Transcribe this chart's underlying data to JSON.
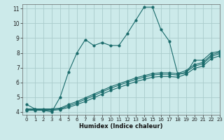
{
  "xlabel": "Humidex (Indice chaleur)",
  "ylabel": "",
  "bg_color": "#cceaea",
  "line_color": "#1a6b6b",
  "grid_color": "#aacccc",
  "xlim": [
    -0.5,
    23
  ],
  "ylim": [
    3.8,
    11.3
  ],
  "yticks": [
    4,
    5,
    6,
    7,
    8,
    9,
    10,
    11
  ],
  "xticks": [
    0,
    1,
    2,
    3,
    4,
    5,
    6,
    7,
    8,
    9,
    10,
    11,
    12,
    13,
    14,
    15,
    16,
    17,
    18,
    19,
    20,
    21,
    22,
    23
  ],
  "line1_x": [
    0,
    1,
    2,
    3,
    4,
    5,
    6,
    7,
    8,
    9,
    10,
    11,
    12,
    13,
    14,
    15,
    16,
    17,
    18,
    19,
    20,
    21,
    22,
    23
  ],
  "line1_y": [
    4.5,
    4.2,
    4.1,
    4.0,
    5.0,
    6.7,
    8.0,
    8.9,
    8.5,
    8.7,
    8.5,
    8.5,
    9.3,
    10.2,
    11.1,
    11.1,
    9.6,
    8.8,
    6.6,
    6.6,
    7.5,
    7.5,
    8.0,
    8.1
  ],
  "line2_x": [
    0,
    1,
    2,
    3,
    4,
    5,
    6,
    7,
    8,
    9,
    10,
    11,
    12,
    13,
    14,
    15,
    16,
    17,
    18,
    19,
    20,
    21,
    22,
    23
  ],
  "line2_y": [
    4.1,
    4.1,
    4.1,
    4.1,
    4.15,
    4.3,
    4.5,
    4.7,
    4.95,
    5.2,
    5.45,
    5.65,
    5.85,
    6.05,
    6.2,
    6.35,
    6.4,
    6.4,
    6.35,
    6.55,
    6.95,
    7.1,
    7.6,
    7.8
  ],
  "line3_x": [
    0,
    1,
    2,
    3,
    4,
    5,
    6,
    7,
    8,
    9,
    10,
    11,
    12,
    13,
    14,
    15,
    16,
    17,
    18,
    19,
    20,
    21,
    22,
    23
  ],
  "line3_y": [
    4.15,
    4.15,
    4.15,
    4.15,
    4.2,
    4.4,
    4.6,
    4.85,
    5.1,
    5.35,
    5.6,
    5.8,
    6.0,
    6.2,
    6.35,
    6.5,
    6.55,
    6.55,
    6.5,
    6.7,
    7.1,
    7.25,
    7.75,
    7.95
  ],
  "line4_x": [
    0,
    1,
    2,
    3,
    4,
    5,
    6,
    7,
    8,
    9,
    10,
    11,
    12,
    13,
    14,
    15,
    16,
    17,
    18,
    19,
    20,
    21,
    22,
    23
  ],
  "line4_y": [
    4.2,
    4.2,
    4.2,
    4.2,
    4.25,
    4.5,
    4.7,
    4.95,
    5.2,
    5.45,
    5.7,
    5.9,
    6.1,
    6.3,
    6.45,
    6.6,
    6.65,
    6.65,
    6.6,
    6.8,
    7.2,
    7.35,
    7.85,
    8.05
  ]
}
